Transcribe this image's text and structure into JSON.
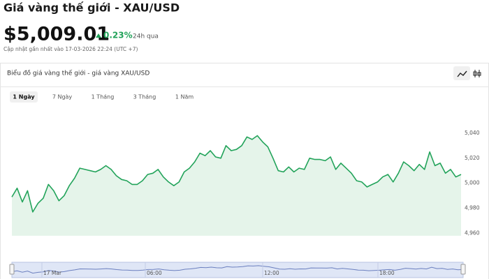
{
  "header": {
    "title": "Giá vàng thế giới - XAU/USD",
    "price": "$5,009.01",
    "change": "0.23%",
    "change_period": "24h qua",
    "updated": "Cập nhật gần nhất vào 17-03-2026 22:24 (UTC +7)"
  },
  "card": {
    "title": "Biểu đồ giá vàng thế giới - giá vàng XAU/USD",
    "tabs": [
      "1 Ngày",
      "7 Ngày",
      "1 Tháng",
      "3 Tháng",
      "1 Năm"
    ],
    "selected_tab": 0
  },
  "chart_data": {
    "type": "area",
    "color": "#22a35a",
    "fill": "#e5f4ea",
    "values": [
      4989,
      4996,
      4985,
      4994,
      4977,
      4984,
      4988,
      4999,
      4994,
      4986,
      4990,
      4998,
      5004,
      5012,
      5011,
      5010,
      5009,
      5011,
      5014,
      5011,
      5006,
      5003,
      5002,
      4999,
      4999,
      5002,
      5007,
      5008,
      5011,
      5005,
      5001,
      4998,
      5001,
      5009,
      5012,
      5017,
      5024,
      5022,
      5026,
      5021,
      5020,
      5030,
      5026,
      5027,
      5030,
      5037,
      5035,
      5038,
      5033,
      5029,
      5020,
      5010,
      5009,
      5013,
      5009,
      5012,
      5011,
      5020,
      5019,
      5019,
      5018,
      5021,
      5011,
      5016,
      5012,
      5008,
      5002,
      5001,
      4997,
      4999,
      5001,
      5005,
      5007,
      5001,
      5008,
      5017,
      5014,
      5010,
      5015,
      5011,
      5025,
      5014,
      5016,
      5008,
      5011,
      5005,
      5007
    ],
    "ylim": [
      4958,
      5060
    ],
    "yticks": [
      {
        "value": 5040,
        "label": "5,040"
      },
      {
        "value": 5020,
        "label": "5,020"
      },
      {
        "value": 5000,
        "label": "5,000"
      },
      {
        "value": 4980,
        "label": "4,980"
      },
      {
        "value": 4960,
        "label": "4,960"
      }
    ],
    "grid": false,
    "navigator_labels": [
      "17 Mar",
      "06:00",
      "12:00",
      "18:00"
    ]
  }
}
